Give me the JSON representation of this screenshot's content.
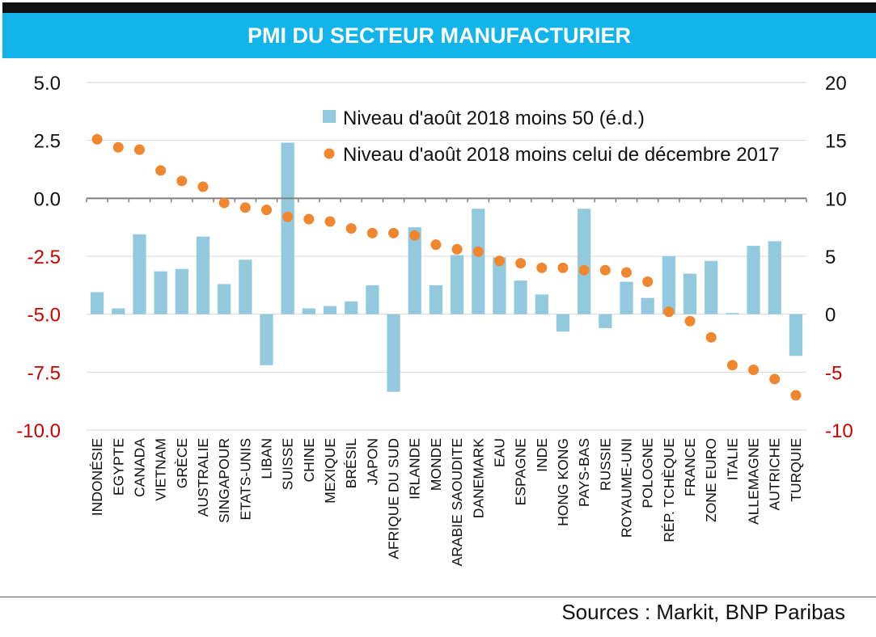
{
  "title": "PMI DU SECTEUR MANUFACTURIER",
  "source": "Sources : Markit, BNP Paribas",
  "colors": {
    "bar": "#92c9df",
    "dot": "#f0862e",
    "header": "#13b4e9",
    "negative_tick": "#cc0000",
    "grid": "#d9d9d9"
  },
  "chart_data": {
    "type": "bar",
    "title": "PMI DU SECTEUR MANUFACTURIER",
    "categories": [
      "INDONÉSIE",
      "EGYPTE",
      "CANADA",
      "VIETNAM",
      "GRÈCE",
      "AUSTRALIE",
      "SINGAPOUR",
      "ETATS-UNIS",
      "LIBAN",
      "SUISSE",
      "CHINE",
      "MEXIQUE",
      "BRÉSIL",
      "JAPON",
      "AFRIQUE DU SUD",
      "IRLANDE",
      "MONDE",
      "ARABIE SAOUDITE",
      "DANEMARK",
      "EAU",
      "ESPAGNE",
      "INDE",
      "HONG KONG",
      "PAYS-BAS",
      "RUSSIE",
      "ROYAUME-UNI",
      "POLOGNE",
      "RÉP. TCHÈQUE",
      "FRANCE",
      "ZONE EURO",
      "ITALIE",
      "ALLEMAGNE",
      "AUTRICHE",
      "TURQUIE"
    ],
    "series": [
      {
        "name": "Niveau d'août 2018 moins 50 (é.d.)",
        "type": "bar",
        "axis": "right",
        "values": [
          1.9,
          0.5,
          6.9,
          3.7,
          3.9,
          6.7,
          2.6,
          4.7,
          -4.4,
          14.8,
          0.5,
          0.7,
          1.1,
          2.5,
          -6.7,
          7.5,
          2.5,
          5.1,
          9.1,
          4.9,
          2.9,
          1.7,
          -1.5,
          9.1,
          -1.2,
          2.8,
          1.4,
          5.0,
          3.5,
          4.6,
          0.1,
          5.9,
          6.3,
          -3.6
        ]
      },
      {
        "name": "Niveau d'août 2018 moins celui de décembre 2017",
        "type": "scatter",
        "axis": "left",
        "values": [
          2.55,
          2.2,
          2.1,
          1.2,
          0.75,
          0.5,
          -0.2,
          -0.4,
          -0.5,
          -0.8,
          -0.9,
          -1.0,
          -1.3,
          -1.5,
          -1.5,
          -1.6,
          -2.0,
          -2.2,
          -2.3,
          -2.7,
          -2.8,
          -3.0,
          -3.0,
          -3.1,
          -3.1,
          -3.2,
          -3.6,
          -4.9,
          -5.3,
          -6.0,
          -7.2,
          -7.4,
          -7.8,
          -8.5
        ]
      }
    ],
    "left_axis": {
      "min": -10,
      "max": 5,
      "ticks": [
        "5.0",
        "2.5",
        "0.0",
        "-2.5",
        "-5.0",
        "-7.5",
        "-10.0"
      ]
    },
    "right_axis": {
      "min": -10,
      "max": 20,
      "ticks": [
        "20",
        "15",
        "10",
        "5",
        "0",
        "-5",
        "-10"
      ]
    },
    "grid": true,
    "legend_position": "top-center"
  }
}
